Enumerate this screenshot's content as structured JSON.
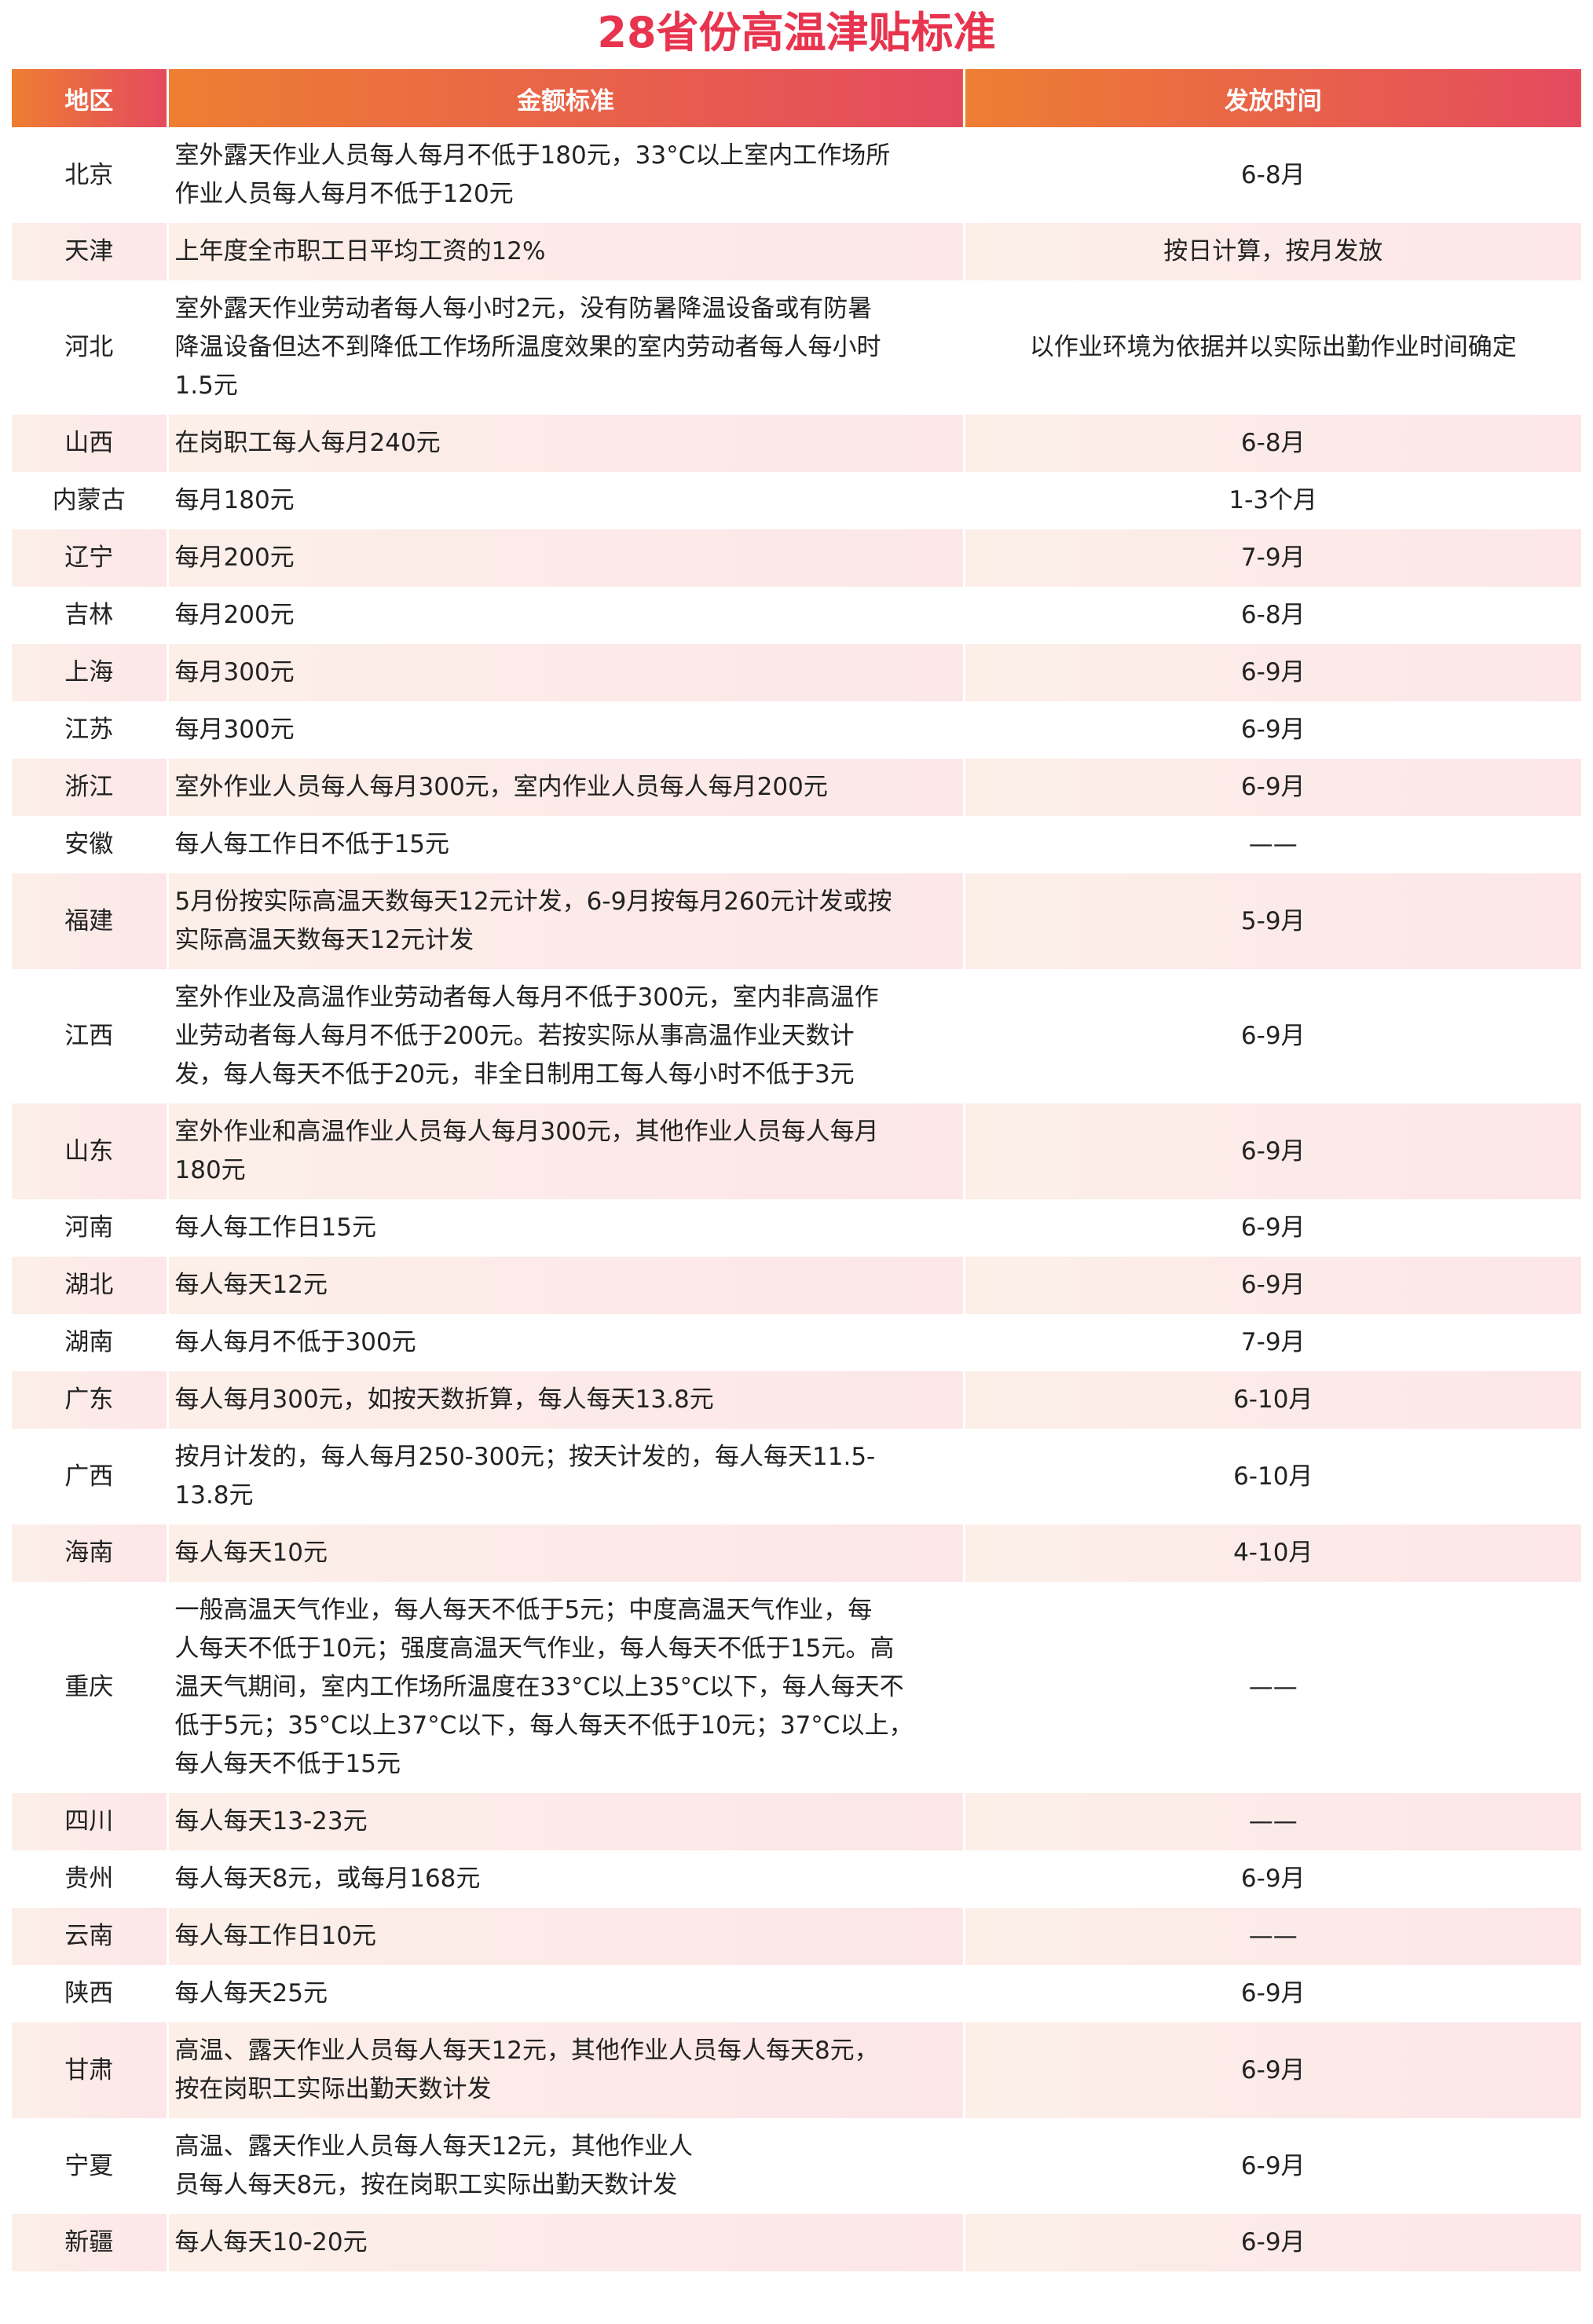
{
  "title": "28省份高温津贴标准",
  "colors": {
    "title": "#E8344E",
    "header_start": "#EE7E32",
    "header_end": "#E44A5F",
    "stripe": "#FCE6E8"
  },
  "table": {
    "headers": [
      "地区",
      "金额标准",
      "发放时间"
    ],
    "rows": [
      {
        "region": "北京",
        "amount": "室外露天作业人员每人每月不低于180元，33°C以上室内工作场所\n作业人员每人每月不低于120元",
        "time": "6-8月"
      },
      {
        "region": "天津",
        "amount": "上年度全市职工日平均工资的12%",
        "time": "按日计算，按月发放"
      },
      {
        "region": "河北",
        "amount": "室外露天作业劳动者每人每小时2元，没有防暑降温设备或有防暑\n降温设备但达不到降低工作场所温度效果的室内劳动者每人每小时\n1.5元",
        "time": "以作业环境为依据并以实际出勤作业时间确定"
      },
      {
        "region": "山西",
        "amount": "在岗职工每人每月240元",
        "time": "6-8月"
      },
      {
        "region": "内蒙古",
        "amount": "每月180元",
        "time": "1-3个月"
      },
      {
        "region": "辽宁",
        "amount": "每月200元",
        "time": "7-9月"
      },
      {
        "region": "吉林",
        "amount": "每月200元",
        "time": "6-8月"
      },
      {
        "region": "上海",
        "amount": "每月300元",
        "time": "6-9月"
      },
      {
        "region": "江苏",
        "amount": "每月300元",
        "time": "6-9月"
      },
      {
        "region": "浙江",
        "amount": "室外作业人员每人每月300元，室内作业人员每人每月200元",
        "time": "6-9月"
      },
      {
        "region": "安徽",
        "amount": "每人每工作日不低于15元",
        "time": "——"
      },
      {
        "region": "福建",
        "amount": "5月份按实际高温天数每天12元计发，6-9月按每月260元计发或按\n实际高温天数每天12元计发",
        "time": "5-9月"
      },
      {
        "region": "江西",
        "amount": "室外作业及高温作业劳动者每人每月不低于300元，室内非高温作\n业劳动者每人每月不低于200元。若按实际从事高温作业天数计\n发，每人每天不低于20元，非全日制用工每人每小时不低于3元",
        "time": "6-9月"
      },
      {
        "region": "山东",
        "amount": "室外作业和高温作业人员每人每月300元，其他作业人员每人每月\n180元",
        "time": "6-9月"
      },
      {
        "region": "河南",
        "amount": "每人每工作日15元",
        "time": "6-9月"
      },
      {
        "region": "湖北",
        "amount": "每人每天12元",
        "time": "6-9月"
      },
      {
        "region": "湖南",
        "amount": "每人每月不低于300元",
        "time": "7-9月"
      },
      {
        "region": "广东",
        "amount": "每人每月300元，如按天数折算，每人每天13.8元",
        "time": "6-10月"
      },
      {
        "region": "广西",
        "amount": "按月计发的，每人每月250-300元；按天计发的，每人每天11.5-\n13.8元",
        "time": "6-10月"
      },
      {
        "region": "海南",
        "amount": "每人每天10元",
        "time": "4-10月"
      },
      {
        "region": "重庆",
        "amount": "一般高温天气作业，每人每天不低于5元；中度高温天气作业，每\n人每天不低于10元；强度高温天气作业，每人每天不低于15元。高\n温天气期间，室内工作场所温度在33°C以上35°C以下，每人每天不\n低于5元；35°C以上37°C以下，每人每天不低于10元；37°C以上，\n每人每天不低于15元",
        "time": "——"
      },
      {
        "region": "四川",
        "amount": "每人每天13-23元",
        "time": "——"
      },
      {
        "region": "贵州",
        "amount": "每人每天8元，或每月168元",
        "time": "6-9月"
      },
      {
        "region": "云南",
        "amount": "每人每工作日10元",
        "time": "——"
      },
      {
        "region": "陕西",
        "amount": "每人每天25元",
        "time": "6-9月"
      },
      {
        "region": "甘肃",
        "amount": "高温、露天作业人员每人每天12元，其他作业人员每人每天8元，\n按在岗职工实际出勤天数计发",
        "time": "6-9月"
      },
      {
        "region": "宁夏",
        "amount": "高温、露天作业人员每人每天12元，其他作业人\n员每人每天8元，按在岗职工实际出勤天数计发",
        "time": "6-9月"
      },
      {
        "region": "新疆",
        "amount": "每人每天10-20元",
        "time": "6-9月"
      }
    ]
  }
}
